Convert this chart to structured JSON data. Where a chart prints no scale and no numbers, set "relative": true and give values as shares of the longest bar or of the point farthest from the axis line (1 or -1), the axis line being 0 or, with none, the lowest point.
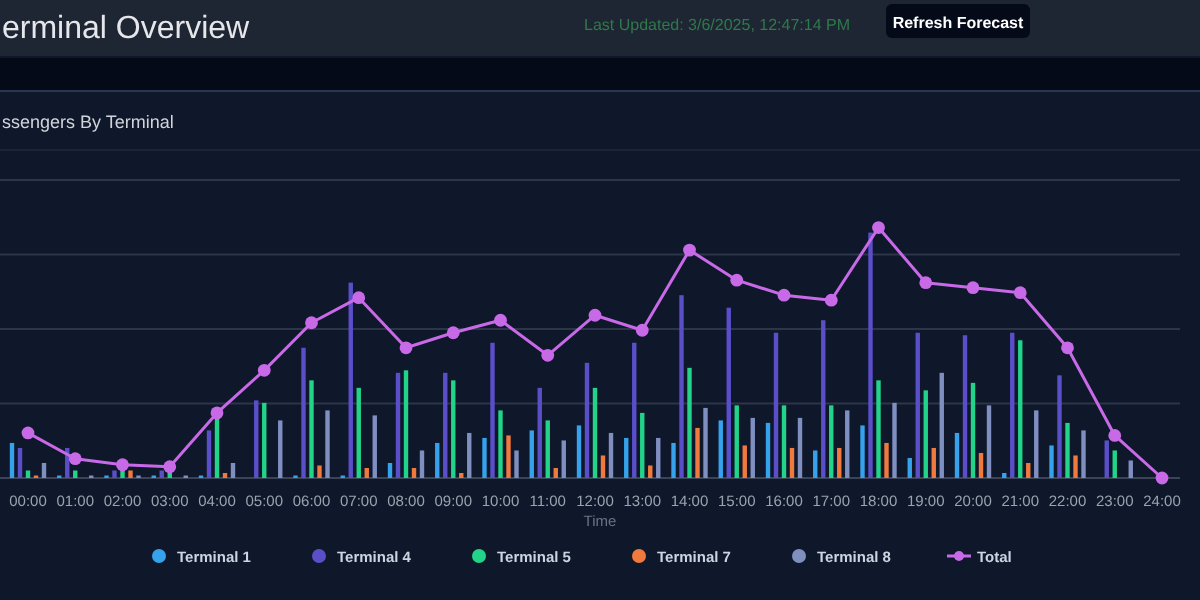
{
  "chart_data": {
    "type": "bar",
    "title": "erminal Overview",
    "subtitle": "ssengers By Terminal",
    "xlabel": "Time",
    "annotations": [
      "Last Updated: 3/6/2025, 12:47:14 PM",
      "Refresh Forecast"
    ],
    "relative": true,
    "grid": "y",
    "legend": "bottom",
    "marker": "circle",
    "categories": [
      "00:00",
      "01:00",
      "02:00",
      "03:00",
      "04:00",
      "05:00",
      "06:00",
      "07:00",
      "08:00",
      "09:00",
      "10:00",
      "11:00",
      "12:00",
      "13:00",
      "14:00",
      "15:00",
      "16:00",
      "17:00",
      "18:00",
      "19:00",
      "20:00",
      "21:00",
      "22:00",
      "23:00",
      "24:00"
    ],
    "series": [
      {
        "name": "Terminal 1",
        "color": "#36a2eb",
        "values": [
          0.14,
          0.01,
          0.01,
          0.01,
          0.01,
          0,
          0.01,
          0.01,
          0.06,
          0.14,
          0.16,
          0.19,
          0.21,
          0.16,
          0.14,
          0.23,
          0.22,
          0.11,
          0.21,
          0.08,
          0.18,
          0.02,
          0.13,
          0,
          0
        ]
      },
      {
        "name": "Terminal 4",
        "color": "#5b4fc9",
        "values": [
          0.12,
          0.12,
          0.03,
          0.03,
          0.19,
          0.31,
          0.52,
          0.78,
          0.42,
          0.42,
          0.54,
          0.36,
          0.46,
          0.54,
          0.73,
          0.68,
          0.58,
          0.63,
          0.98,
          0.58,
          0.57,
          0.58,
          0.41,
          0.15,
          0
        ]
      },
      {
        "name": "Terminal 5",
        "color": "#22d38a",
        "values": [
          0.03,
          0.03,
          0.04,
          0.03,
          0.25,
          0.3,
          0.39,
          0.36,
          0.43,
          0.39,
          0.27,
          0.23,
          0.36,
          0.26,
          0.44,
          0.29,
          0.29,
          0.29,
          0.39,
          0.35,
          0.38,
          0.55,
          0.22,
          0.11,
          0
        ]
      },
      {
        "name": "Terminal 7",
        "color": "#f07a3e",
        "values": [
          0.01,
          0,
          0.03,
          0,
          0.02,
          0,
          0.05,
          0.04,
          0.04,
          0.02,
          0.17,
          0.04,
          0.09,
          0.05,
          0.2,
          0.13,
          0.12,
          0.12,
          0.14,
          0.12,
          0.1,
          0.06,
          0.09,
          0,
          0
        ]
      },
      {
        "name": "Terminal 8",
        "color": "#7f8fc0",
        "values": [
          0.06,
          0.01,
          0.01,
          0.01,
          0.06,
          0.23,
          0.27,
          0.25,
          0.11,
          0.18,
          0.11,
          0.15,
          0.18,
          0.16,
          0.28,
          0.24,
          0.24,
          0.27,
          0.3,
          0.42,
          0.29,
          0.27,
          0.19,
          0.07,
          0
        ]
      },
      {
        "name": "Total",
        "type": "line",
        "color": "#c86ae8",
        "values": [
          0.18,
          0.077,
          0.053,
          0.045,
          0.26,
          0.43,
          0.62,
          0.72,
          0.52,
          0.58,
          0.63,
          0.49,
          0.65,
          0.59,
          0.91,
          0.79,
          0.73,
          0.71,
          1,
          0.78,
          0.76,
          0.74,
          0.52,
          0.17,
          0
        ]
      }
    ]
  }
}
